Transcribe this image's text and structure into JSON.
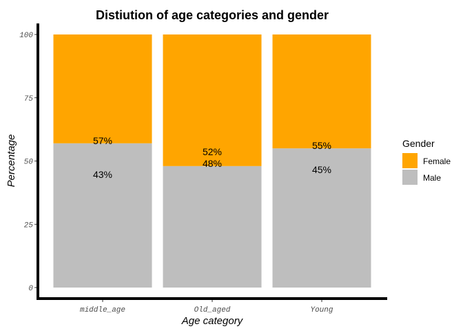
{
  "chart_data": {
    "type": "bar",
    "stacked": true,
    "title": "Distiution of age categories and gender",
    "xlabel": "Age category",
    "ylabel": "Percentage",
    "ylim": [
      0,
      100
    ],
    "yticks": [
      0,
      25,
      50,
      75,
      100
    ],
    "categories": [
      "middle_age",
      "Old_aged",
      "Young"
    ],
    "series": [
      {
        "name": "Male",
        "color": "#bebebe",
        "values": [
          57,
          48,
          55
        ],
        "labels": [
          "57%",
          "48%",
          "55%"
        ]
      },
      {
        "name": "Female",
        "color": "#ffa500",
        "values": [
          43,
          52,
          45
        ],
        "labels": [
          "43%",
          "52%",
          "45%"
        ]
      }
    ],
    "legend": {
      "title": "Gender",
      "position": "right",
      "entries": [
        {
          "name": "Female",
          "color": "#ffa500"
        },
        {
          "name": "Male",
          "color": "#bebebe"
        }
      ]
    },
    "grid": false
  }
}
